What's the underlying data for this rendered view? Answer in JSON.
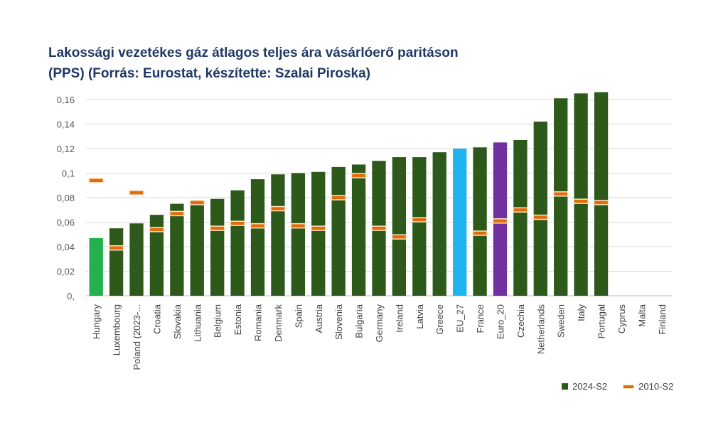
{
  "title_line1": "Lakossági vezetékes gáz átlagos teljes ára vásárlóerő paritáson",
  "title_line2": "(PPS) (Forrás: Eurostat, készítette: Szalai Piroska)",
  "chart_data": {
    "type": "bar",
    "title": "Lakossági vezetékes gáz átlagos teljes ára vásárlóerő paritáson (PPS) (Forrás: Eurostat, készítette: Szalai Piroska)",
    "categories": [
      "Hungary",
      "Luxembourg",
      "Poland (2023-...",
      "Croatia",
      "Slovakia",
      "Lithuania",
      "Belgium",
      "Estonia",
      "Romania",
      "Denmark",
      "Spain",
      "Austria",
      "Slovenia",
      "Bulgaria",
      "Germany",
      "Ireland",
      "Latvia",
      "Greece",
      "EU_27",
      "France",
      "Euro_20",
      "Czechia",
      "Netherlands",
      "Sweden",
      "Italy",
      "Portugal",
      "Cyprus",
      "Malta",
      "Finland"
    ],
    "series": [
      {
        "name": "2024-S2",
        "kind": "bar",
        "color": "#2d5a1b",
        "values": [
          0.047,
          0.055,
          0.059,
          0.066,
          0.075,
          0.077,
          0.079,
          0.086,
          0.095,
          0.099,
          0.1,
          0.101,
          0.105,
          0.107,
          0.11,
          0.113,
          0.113,
          0.117,
          0.12,
          0.121,
          0.125,
          0.127,
          0.142,
          0.161,
          0.165,
          0.166,
          null,
          null,
          null
        ]
      },
      {
        "name": "2010-S2",
        "kind": "marker",
        "color": "#e36c0a",
        "values": [
          0.094,
          0.039,
          0.084,
          0.054,
          0.067,
          0.076,
          0.055,
          0.059,
          0.057,
          0.071,
          0.057,
          0.055,
          0.08,
          0.098,
          0.055,
          0.048,
          0.062,
          null,
          null,
          0.051,
          0.061,
          0.07,
          0.064,
          0.083,
          0.077,
          0.076,
          null,
          null,
          null
        ]
      }
    ],
    "highlight_colors": {
      "Hungary": "#22b14c",
      "EU_27": "#1fb4f0",
      "Euro_20": "#7030a0"
    },
    "y_ticks": [
      "0,",
      "0,02",
      "0,04",
      "0,06",
      "0,08",
      "0,1",
      "0,12",
      "0,14",
      "0,16"
    ],
    "ylim": [
      0,
      0.16
    ],
    "grid": true,
    "legend_position": "bottom-right"
  }
}
